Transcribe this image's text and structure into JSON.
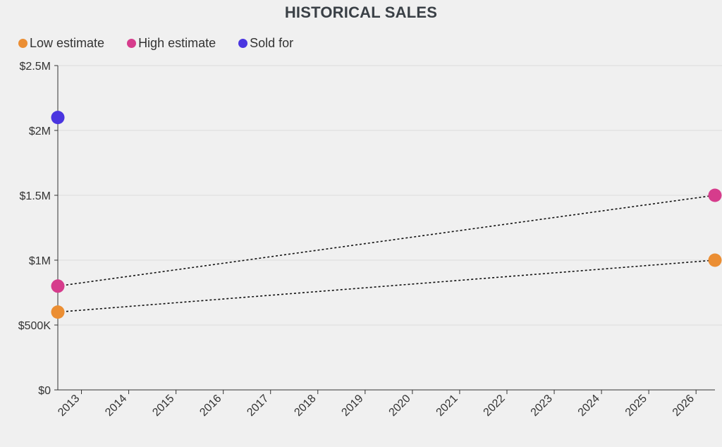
{
  "chart_data": {
    "type": "scatter",
    "title": "HISTORICAL SALES",
    "xlabel": "",
    "ylabel": "",
    "xlim": [
      2012.5,
      2026.4
    ],
    "ylim": [
      0,
      2500000
    ],
    "x_ticks": [
      "2013",
      "2014",
      "2015",
      "2016",
      "2017",
      "2018",
      "2019",
      "2020",
      "2021",
      "2022",
      "2023",
      "2024",
      "2025",
      "2026"
    ],
    "y_ticks": [
      {
        "value": 0,
        "label": "$0"
      },
      {
        "value": 500000,
        "label": "$500K"
      },
      {
        "value": 1000000,
        "label": "$1M"
      },
      {
        "value": 1500000,
        "label": "$1.5M"
      },
      {
        "value": 2000000,
        "label": "$2M"
      },
      {
        "value": 2500000,
        "label": "$2.5M"
      }
    ],
    "grid": true,
    "legend_position": "top-left",
    "series": [
      {
        "name": "Low estimate",
        "color": "#eb8e33",
        "connector": "dotted",
        "points": [
          {
            "x": 2012.5,
            "y": 600000
          },
          {
            "x": 2026.4,
            "y": 1000000
          }
        ]
      },
      {
        "name": "High estimate",
        "color": "#d63c8c",
        "connector": "dotted",
        "points": [
          {
            "x": 2012.5,
            "y": 800000
          },
          {
            "x": 2026.4,
            "y": 1500000
          }
        ]
      },
      {
        "name": "Sold for",
        "color": "#4a35e0",
        "connector": "none",
        "points": [
          {
            "x": 2012.5,
            "y": 2100000
          }
        ]
      }
    ]
  }
}
